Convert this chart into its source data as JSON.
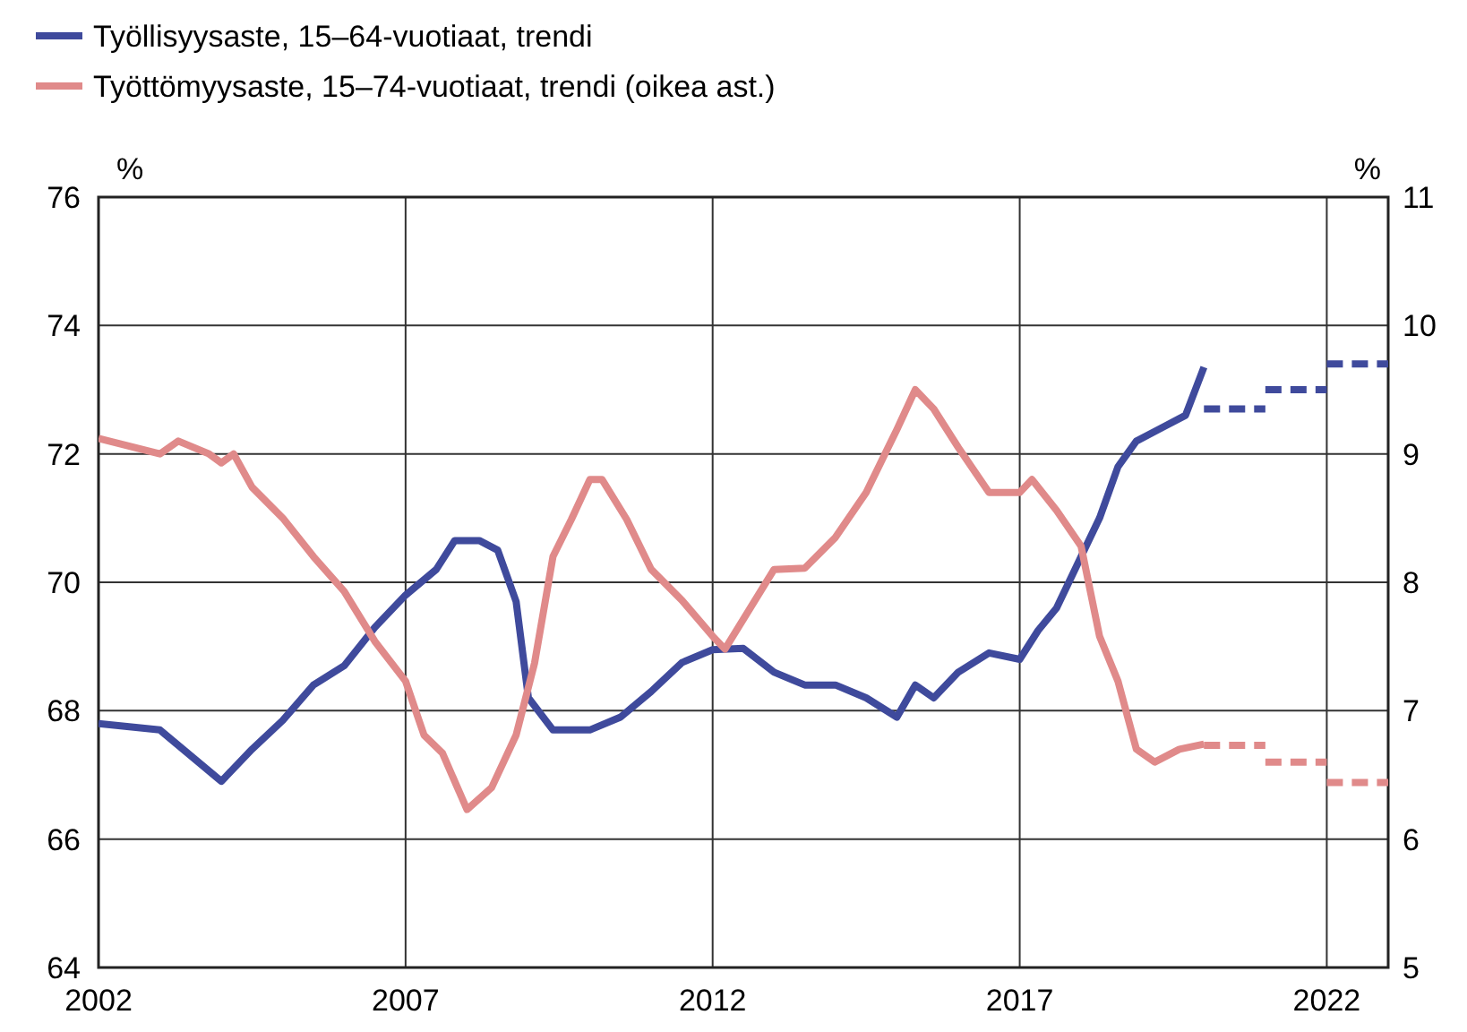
{
  "chart_data": {
    "type": "line",
    "ylabel": "%",
    "y2label": "%",
    "xlim": [
      2002,
      2023
    ],
    "xticks": [
      2002,
      2007,
      2012,
      2017,
      2022
    ],
    "ylim": [
      64,
      76
    ],
    "yticks": [
      64,
      66,
      68,
      70,
      72,
      74,
      76
    ],
    "y2lim": [
      5,
      11
    ],
    "y2ticks": [
      5,
      6,
      7,
      8,
      9,
      10,
      11
    ],
    "grid": true,
    "legend": "top",
    "line_style": "solid",
    "series": [
      {
        "name": "Työllisyysaste, 15–64-vuotiaat, trendi",
        "color": "#3f4a9c",
        "x": [
          2002,
          2003,
          2004,
          2004.5,
          2005,
          2005.5,
          2006,
          2006.5,
          2007,
          2007.5,
          2007.8,
          2008.2,
          2008.5,
          2008.8,
          2009,
          2009.4,
          2010,
          2010.5,
          2011,
          2011.5,
          2012,
          2012.5,
          2013,
          2013.5,
          2014,
          2014.5,
          2015,
          2015.3,
          2015.6,
          2016,
          2016.5,
          2017,
          2017.3,
          2017.6,
          2018,
          2018.3,
          2018.6,
          2018.9,
          2019.3,
          2019.7,
          2020
        ],
        "values": [
          67.8,
          67.7,
          66.9,
          67.4,
          67.85,
          68.4,
          68.7,
          69.3,
          69.8,
          70.2,
          70.65,
          70.65,
          70.5,
          69.7,
          68.2,
          67.7,
          67.7,
          67.9,
          68.3,
          68.75,
          68.95,
          68.97,
          68.6,
          68.4,
          68.4,
          68.2,
          67.9,
          68.4,
          68.2,
          68.6,
          68.9,
          68.8,
          69.25,
          69.6,
          70.4,
          71.0,
          71.8,
          72.2,
          72.4,
          72.6,
          73.35
        ]
      },
      {
        "name": "Työttömyysaste, 15–74-vuotiaat, trendi (oikea ast.)",
        "color": "#e08a8a",
        "axis": "y2",
        "x": [
          2002,
          2003,
          2003.3,
          2003.8,
          2004,
          2004.2,
          2004.5,
          2005,
          2005.5,
          2006,
          2006.5,
          2007,
          2007.3,
          2007.6,
          2008,
          2008.4,
          2008.8,
          2009.1,
          2009.4,
          2009.7,
          2010,
          2010.2,
          2010.6,
          2011,
          2011.5,
          2012,
          2012.2,
          2012.6,
          2013,
          2013.5,
          2014,
          2014.5,
          2015,
          2015.3,
          2015.6,
          2016,
          2016.5,
          2017,
          2017.2,
          2017.6,
          2018,
          2018.3,
          2018.6,
          2018.9,
          2019.2,
          2019.6,
          2020
        ],
        "values": [
          9.12,
          9.0,
          9.1,
          9.0,
          8.93,
          9.0,
          8.74,
          8.5,
          8.2,
          7.93,
          7.54,
          7.23,
          6.81,
          6.67,
          6.23,
          6.4,
          6.81,
          7.37,
          8.2,
          8.49,
          8.8,
          8.8,
          8.49,
          8.1,
          7.86,
          7.58,
          7.48,
          7.79,
          8.1,
          8.11,
          8.35,
          8.7,
          9.19,
          9.5,
          9.35,
          9.05,
          8.7,
          8.7,
          8.8,
          8.56,
          8.28,
          7.58,
          7.23,
          6.7,
          6.6,
          6.7,
          6.74
        ]
      },
      {
        "color": "#3f4a9c",
        "line_style": "dashed",
        "x": [
          2020,
          2021
        ],
        "values": [
          72.7,
          72.7
        ]
      },
      {
        "color": "#3f4a9c",
        "line_style": "dashed",
        "x": [
          2021,
          2022
        ],
        "values": [
          73.0,
          73.0
        ]
      },
      {
        "color": "#3f4a9c",
        "line_style": "dashed",
        "x": [
          2022,
          2023
        ],
        "values": [
          73.4,
          73.4
        ]
      },
      {
        "color": "#e08a8a",
        "line_style": "dashed",
        "axis": "y2",
        "x": [
          2020,
          2021
        ],
        "values": [
          6.73,
          6.73
        ]
      },
      {
        "color": "#e08a8a",
        "line_style": "dashed",
        "axis": "y2",
        "x": [
          2021,
          2022
        ],
        "values": [
          6.6,
          6.6
        ]
      },
      {
        "color": "#e08a8a",
        "line_style": "dashed",
        "axis": "y2",
        "x": [
          2022,
          2023
        ],
        "values": [
          6.44,
          6.44
        ]
      }
    ]
  }
}
